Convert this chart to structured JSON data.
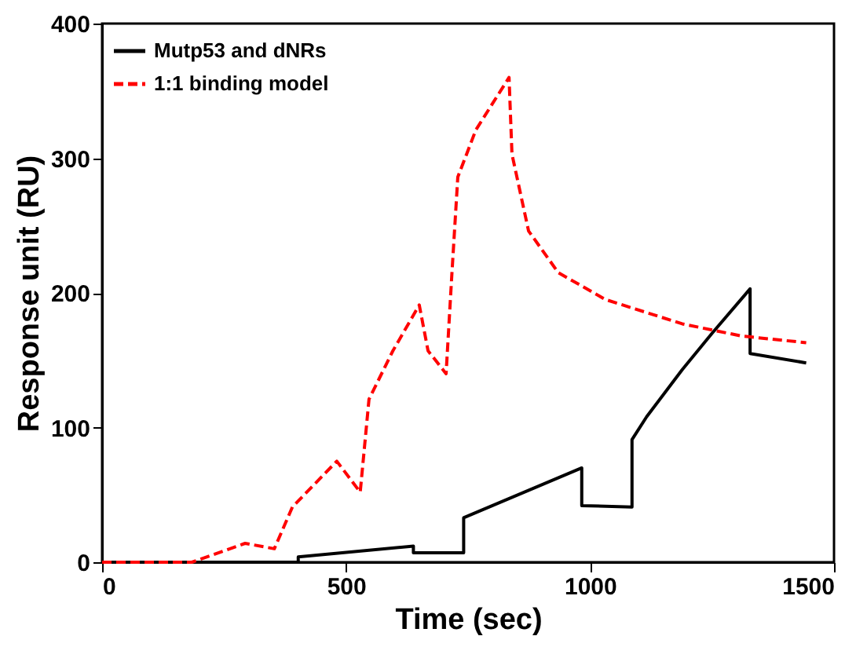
{
  "chart_data": {
    "type": "line",
    "xlabel": "Time (sec)",
    "ylabel": "Response unit (RU)",
    "xlim": [
      0,
      1500
    ],
    "ylim": [
      0,
      400
    ],
    "xticks": [
      0,
      500,
      1000,
      1500
    ],
    "yticks": [
      0,
      100,
      200,
      300,
      400
    ],
    "grid": false,
    "legend": "top left",
    "marker": "none",
    "series": [
      {
        "name": "Mutp53 and dNRs",
        "color": "#000000",
        "line_style": "solid",
        "x": [
          0,
          200,
          402,
          402,
          638,
          638,
          741,
          741,
          983,
          983,
          1086,
          1086,
          1116,
          1189,
          1250,
          1328,
          1328,
          1443
        ],
        "values": [
          0,
          0,
          0,
          4,
          12,
          7,
          7,
          33,
          70,
          42,
          41,
          91,
          108,
          143,
          170,
          203,
          155,
          148
        ]
      },
      {
        "name": "1:1 binding model",
        "color": "#ff0000",
        "line_style": "dashed",
        "x": [
          0,
          100,
          184,
          293,
          353,
          390,
          481,
          529,
          547,
          596,
          650,
          668,
          705,
          717,
          729,
          766,
          834,
          840,
          874,
          935,
          1032,
          1189,
          1310,
          1443
        ],
        "values": [
          0,
          0,
          0,
          14,
          10,
          41,
          75,
          52,
          121,
          157,
          191,
          157,
          140,
          215,
          286,
          321,
          360,
          303,
          246,
          215,
          195,
          177,
          168,
          163
        ]
      }
    ]
  }
}
